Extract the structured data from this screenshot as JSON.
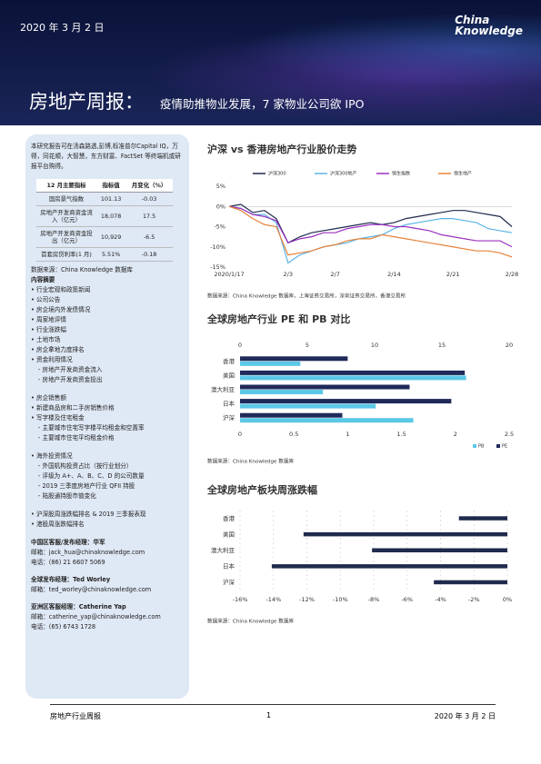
{
  "header": {
    "date": "2020 年 3 月 2 日",
    "logo": [
      "China",
      "Knowledge"
    ],
    "title": "房地产周报：",
    "subtitle": "疫情助推物业发展，7 家物业公司欲 IPO"
  },
  "sidebar": {
    "intro": "本研究报告可在汤森路透,彭博,标准普尔Capital IQ，万得，同花顺，大智慧，东方财富、FactSet 等终端机或研报平台购得。",
    "table": {
      "headers": [
        "12 月主要指标",
        "指标值",
        "月变化（%）"
      ],
      "rows": [
        [
          "国房景气指数",
          "101.13",
          "-0.03"
        ],
        [
          "房地产开发商资金流入（亿元）",
          "18,078",
          "17.5"
        ],
        [
          "房地产开发商资金投出（亿元）",
          "10,929",
          "-6.5"
        ],
        [
          "首套房贷利率(1 月)",
          "5.51%",
          "-0.18"
        ]
      ]
    },
    "source": "数据来源：China Knowledge 数据库",
    "toc_title": "内容摘要",
    "toc": [
      [
        {
          "text": "行业宏观和政策新闻"
        },
        {
          "text": "公司公告"
        },
        {
          "text": "房企境内外发债情况"
        },
        {
          "text": "周家地评情"
        },
        {
          "text": "行业涨跌幅"
        },
        {
          "text": "土地市场"
        },
        {
          "text": "房企拿地力度排名"
        },
        {
          "text": "资金利用情况",
          "sub": [
            "房地产开发商资金流入",
            "房地产开发商资金投出"
          ]
        }
      ],
      [
        {
          "text": "房企销售额"
        },
        {
          "text": "新建商品房和二手房销售价格"
        },
        {
          "text": "写字楼及住宅租金",
          "sub": [
            "主要城市住宅写字楼平均租金和空置率",
            "主要城市住宅平均租金价格"
          ]
        }
      ],
      [
        {
          "text": "海外投资情况",
          "sub": [
            "外国机构投资占比（按行业划分）",
            "评级为 A+、A、B、C、D 的公司数量",
            "2019 三季度房地产行业 QFII 持股",
            "陆股通持股市值变化"
          ]
        }
      ],
      [
        {
          "text": "沪深股周涨跌幅排名 & 2019 三季报表现"
        },
        {
          "text": "港股周涨跌幅排名"
        }
      ]
    ],
    "contacts": [
      {
        "title": "中国区客服/发布经理：华军",
        "lines": [
          "邮箱：jack_hua@chinaknowledge.com",
          "电话：(86) 21 6607 5069"
        ]
      },
      {
        "title": "全球发布经理：Ted Worley",
        "lines": [
          "邮箱：ted_worley@chinaknowledge.com"
        ]
      },
      {
        "title": "亚洲区客服经理：Catherine Yap",
        "lines": [
          "邮箱：catherine_yap@chinaknowledge.com",
          "电话：(65) 6743 1728"
        ]
      }
    ]
  },
  "chart_data": [
    {
      "type": "line",
      "title": "沪深  vs  香港房地产行业股价走势",
      "categories": [
        "2020/1/17",
        null,
        null,
        null,
        null,
        "2/3",
        null,
        null,
        null,
        "2/7",
        null,
        null,
        null,
        null,
        "2/14",
        null,
        null,
        null,
        null,
        "2/21",
        null,
        null,
        null,
        null,
        "2/28"
      ],
      "series": [
        {
          "name": "沪深300",
          "color": "#1f2a4d",
          "values": [
            0,
            0.5,
            -1.5,
            -1,
            -3,
            -9,
            -7.5,
            -6.5,
            -6,
            -5.5,
            -5,
            -4.5,
            -4,
            -4.5,
            -4,
            -3,
            -2.5,
            -2,
            -1.5,
            -1,
            -1,
            -1.5,
            -2,
            -2.5,
            -5
          ]
        },
        {
          "name": "沪深300地产",
          "color": "#5ab4e5",
          "values": [
            0,
            -0.5,
            -2,
            -2,
            -4,
            -14,
            -12,
            -11,
            -10,
            -9.5,
            -9,
            -8,
            -7.5,
            -7,
            -5.5,
            -4.5,
            -4,
            -3.5,
            -3,
            -3,
            -3.5,
            -4,
            -5.5,
            -6,
            -6.5
          ]
        },
        {
          "name": "恒生指数",
          "color": "#9b30c0",
          "values": [
            0,
            -0.5,
            -2,
            -2.5,
            -3.5,
            -9,
            -8,
            -7.5,
            -6.5,
            -6.5,
            -5.5,
            -5,
            -4.5,
            -4.5,
            -5,
            -5,
            -5.5,
            -6,
            -7,
            -7.5,
            -8,
            -8.5,
            -8.5,
            -8.5,
            -10
          ]
        },
        {
          "name": "恒生地产",
          "color": "#e8833a",
          "values": [
            0,
            -1,
            -3,
            -4.5,
            -5,
            -12,
            -11.5,
            -11,
            -10,
            -9.5,
            -8.5,
            -8,
            -8,
            -7,
            -7.5,
            -8,
            -8.5,
            -9,
            -9.5,
            -10,
            -10.5,
            -11,
            -11,
            -11.5,
            -12.5
          ]
        }
      ],
      "ylim": [
        -15,
        5
      ],
      "yticks": [
        {
          "value": 5,
          "label": "5%"
        },
        {
          "value": 0,
          "label": "0%"
        },
        {
          "value": -5,
          "label": "-5%"
        },
        {
          "value": -10,
          "label": "-10%"
        },
        {
          "value": -15,
          "label": "-15%"
        }
      ],
      "grid": false,
      "source": "数据来源：China Knowledge 数据库，上海证券交易所，深圳证券交易所，香港交易所"
    },
    {
      "type": "hbar",
      "title": "全球房地产行业  PE  和  PB  对比",
      "categories": [
        "香港",
        "美国",
        "澳大利亚",
        "日本",
        "沪深"
      ],
      "series": [
        {
          "name": "PE",
          "color": "#1f2a5a",
          "values": [
            8.0,
            16.7,
            12.6,
            15.7,
            7.6
          ]
        },
        {
          "name": "PB",
          "color": "#5bc8e6",
          "axis": "x2",
          "values": [
            0.56,
            2.1,
            0.77,
            1.26,
            1.61
          ]
        }
      ],
      "xlim": [
        0,
        20
      ],
      "xticks": [
        0,
        5,
        10,
        15,
        20
      ],
      "x2lim": [
        0,
        2.5
      ],
      "x2ticks": [
        0,
        0.5,
        1,
        1.5,
        2,
        2.5
      ],
      "grid": false,
      "legend": "bottom-right",
      "source": "数据来源：China Knowledge 数据库"
    },
    {
      "type": "hbar",
      "title": "全球房地产板块周涨跌幅",
      "categories": [
        "香港",
        "美国",
        "澳大利亚",
        "日本",
        "沪深"
      ],
      "series": [
        {
          "name": "周涨跌幅",
          "color": "#1f2a4d",
          "values": [
            -2.9,
            -12.2,
            -8.1,
            -14.1,
            -4.4
          ]
        }
      ],
      "xlim": [
        -16,
        0
      ],
      "xticks": [
        {
          "value": -16,
          "label": "-16%"
        },
        {
          "value": -14,
          "label": "-14%"
        },
        {
          "value": -12,
          "label": "-12%"
        },
        {
          "value": -10,
          "label": "-10%"
        },
        {
          "value": -8,
          "label": "-8%"
        },
        {
          "value": -6,
          "label": "-6%"
        },
        {
          "value": -4,
          "label": "-4%"
        },
        {
          "value": -2,
          "label": "-2%"
        },
        {
          "value": 0,
          "label": "0%"
        }
      ],
      "grid": true,
      "source": "数据来源：China Knowledge 数据库"
    }
  ],
  "footer": {
    "left": "房地产行业周报",
    "page": "1",
    "date": "2020 年 3 月 2 日"
  }
}
